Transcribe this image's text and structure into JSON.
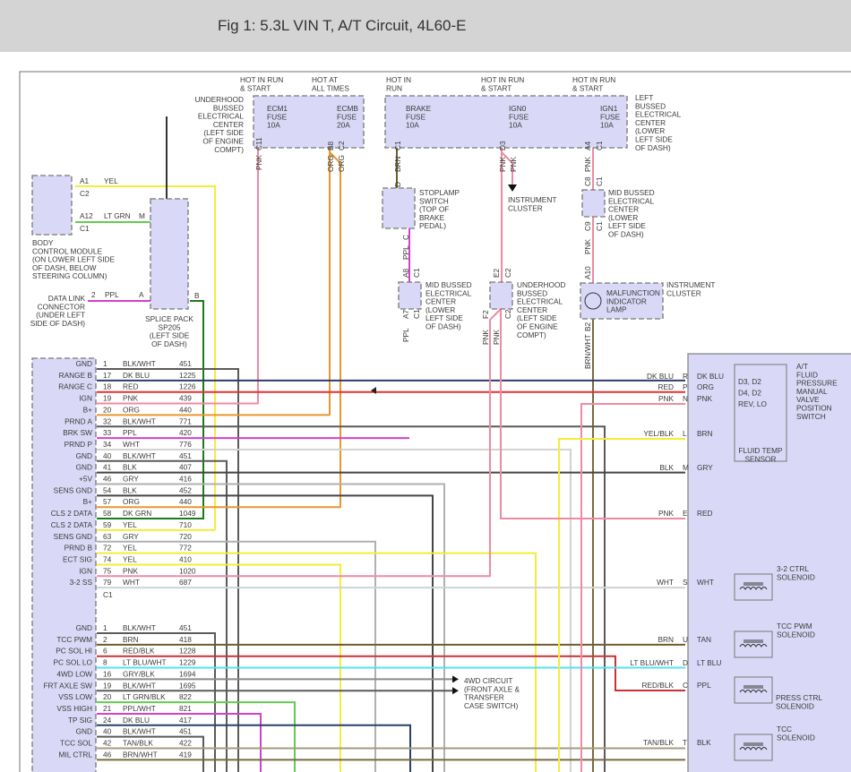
{
  "header": {
    "title": "Fig 1: 5.3L VIN T, A/T Circuit, 4L60-E"
  },
  "wire_colors": {
    "BLK/WHT": "#5a5a5a",
    "DK BLU": "#2b3f6b",
    "RED": "#e23030",
    "PNK": "#f08aa3",
    "ORG": "#e8962e",
    "PPL": "#d23fd2",
    "WHT": "#d2d2d2",
    "BLK": "#454545",
    "GRY": "#b0b0b0",
    "DK GRN": "#1b7a1b",
    "YEL": "#f4ec3a",
    "BRN": "#6e5c28",
    "LT BLU": "#55e0ee",
    "LT GRN": "#63cc50",
    "TAN": "#a39d7b",
    "BRN/WHT": "#7a6a40",
    "RED/BLK": "#c83232",
    "LT BLU/WHT": "#55e0ee",
    "GRY/BLK": "#8a8a8a",
    "LT GRN/BLK": "#63cc50",
    "PPL/WHT": "#d23fd2",
    "TAN/BLK": "#a39d7b",
    "YEL/BLK": "#f4ec3a",
    "box_fill": "#d9d9f7"
  },
  "fuse_blocks": {
    "underhood": {
      "desc": [
        "UNDERHOOD",
        "BUSSED",
        "ELECTRICAL",
        "CENTER",
        "(LEFT SIDE",
        "OF ENGINE",
        "COMPT)"
      ],
      "fuses": [
        {
          "hot": [
            "HOT IN RUN",
            "& START"
          ],
          "name": [
            "ECM1",
            "FUSE",
            "10A"
          ]
        },
        {
          "hot": [
            "HOT AT",
            "ALL TIMES"
          ],
          "name": [
            "ECMB",
            "FUSE",
            "20A"
          ]
        }
      ]
    },
    "left": {
      "desc": [
        "LEFT",
        "BUSSED",
        "ELECTRICAL",
        "CENTER",
        "(LOWER",
        "LEFT SIDE",
        "OF DASH)"
      ],
      "fuses": [
        {
          "hot": [
            "HOT IN",
            "RUN"
          ],
          "name": [
            "BRAKE",
            "FUSE",
            "10A"
          ]
        },
        {
          "hot": [
            "HOT IN RUN",
            "& START"
          ],
          "name": [
            "IGN0",
            "FUSE",
            "10A"
          ]
        },
        {
          "hot": [
            "HOT IN RUN",
            "& START"
          ],
          "name": [
            "IGN1",
            "FUSE",
            "10A"
          ]
        }
      ]
    }
  },
  "vertical_labels": [
    "PNK",
    "C11",
    "ORG",
    "B8",
    "ORG",
    "C2",
    "BRN",
    "C1",
    "PNK",
    "D3",
    "PNK",
    "PNK",
    "A4",
    "C1",
    "D",
    "C",
    "PPL",
    "A8",
    "C1",
    "A7",
    "C1",
    "PPL",
    "E2",
    "C2",
    "F2",
    "C2",
    "PNK",
    "PNK",
    "C8",
    "C1",
    "C9",
    "C1",
    "PNK",
    "A10",
    "B2",
    "BRN/WHT"
  ],
  "bcm": {
    "desc": [
      "BODY",
      "CONTROL MODULE",
      "(ON LOWER LEFT SIDE",
      "OF DASH, BELOW",
      "STEERING COLUMN)"
    ],
    "pins": [
      {
        "pin": "A1",
        "color": "YEL",
        "conn": "C2"
      },
      {
        "pin": "A12",
        "color": "LT GRN",
        "conn": "C1",
        "to": "M"
      }
    ]
  },
  "dlc": {
    "desc": [
      "DATA LINK",
      "CONNECTOR",
      "(UNDER LEFT",
      "SIDE OF DASH)"
    ],
    "pin": "2",
    "color": "PPL",
    "to": "A"
  },
  "splice": {
    "desc": [
      "SPLICE PACK",
      "SP205",
      "(LEFT SIDE",
      "OF DASH)"
    ],
    "out": "B"
  },
  "components": {
    "stoplamp": [
      "STOPLAMP",
      "SWITCH",
      "(TOP OF",
      "BRAKE",
      "PEDAL)"
    ],
    "cluster_arrow": [
      "INSTRUMENT",
      "CLUSTER"
    ],
    "mid_bussed_top": [
      "MID BUSSED",
      "ELECTRICAL",
      "CENTER",
      "(LOWER",
      "LEFT SIDE",
      "OF DASH)"
    ],
    "mid_bussed": [
      "MID BUSSED",
      "ELECTRICAL",
      "CENTER",
      "(LOWER",
      "LEFT SIDE",
      "OF DASH)"
    ],
    "underhood2": [
      "UNDERHOOD",
      "BUSSED",
      "ELECTRICAL",
      "CENTER",
      "(LEFT SIDE",
      "OF ENGINE",
      "COMPT)"
    ],
    "mil": [
      "MALFUNCTION",
      "INDICATOR",
      "LAMP"
    ],
    "mil_cluster": [
      "INSTRUMENT",
      "CLUSTER"
    ],
    "fwd": [
      "4WD CIRCUIT",
      "(FRONT AXLE &",
      "TRANSFER",
      "CASE SWITCH)"
    ]
  },
  "pcm": {
    "c2_rows": [
      {
        "label": "GND",
        "pin": "1",
        "color": "BLK/WHT",
        "circuit": "451"
      },
      {
        "label": "RANGE B",
        "pin": "17",
        "color": "DK BLU",
        "circuit": "1225"
      },
      {
        "label": "RANGE C",
        "pin": "18",
        "color": "RED",
        "circuit": "1226"
      },
      {
        "label": "IGN",
        "pin": "19",
        "color": "PNK",
        "circuit": "439"
      },
      {
        "label": "B+",
        "pin": "20",
        "color": "ORG",
        "circuit": "440"
      },
      {
        "label": "PRND A",
        "pin": "32",
        "color": "BLK/WHT",
        "circuit": "771"
      },
      {
        "label": "BRK SW",
        "pin": "33",
        "color": "PPL",
        "circuit": "420"
      },
      {
        "label": "PRND P",
        "pin": "34",
        "color": "WHT",
        "circuit": "776"
      },
      {
        "label": "GND",
        "pin": "40",
        "color": "BLK/WHT",
        "circuit": "451"
      },
      {
        "label": "GND",
        "pin": "41",
        "color": "BLK",
        "circuit": "407"
      },
      {
        "label": "+5V",
        "pin": "46",
        "color": "GRY",
        "circuit": "416"
      },
      {
        "label": "SENS GND",
        "pin": "54",
        "color": "BLK",
        "circuit": "452"
      },
      {
        "label": "B+",
        "pin": "57",
        "color": "ORG",
        "circuit": "440"
      },
      {
        "label": "CLS 2 DATA",
        "pin": "58",
        "color": "DK GRN",
        "circuit": "1049"
      },
      {
        "label": "CLS 2 DATA",
        "pin": "59",
        "color": "YEL",
        "circuit": "710"
      },
      {
        "label": "SENS GND",
        "pin": "63",
        "color": "GRY",
        "circuit": "720"
      },
      {
        "label": "PRND B",
        "pin": "72",
        "color": "YEL",
        "circuit": "772"
      },
      {
        "label": "ECT SIG",
        "pin": "74",
        "color": "YEL",
        "circuit": "410"
      },
      {
        "label": "IGN",
        "pin": "75",
        "color": "PNK",
        "circuit": "1020"
      },
      {
        "label": "3-2 SS",
        "pin": "79",
        "color": "WHT",
        "circuit": "687"
      }
    ],
    "c2_connector": "C1",
    "c1_rows": [
      {
        "label": "GND",
        "pin": "1",
        "color": "BLK/WHT",
        "circuit": "451"
      },
      {
        "label": "TCC PWM",
        "pin": "2",
        "color": "BRN",
        "circuit": "418"
      },
      {
        "label": "PC SOL HI",
        "pin": "6",
        "color": "RED/BLK",
        "circuit": "1228"
      },
      {
        "label": "PC SOL LO",
        "pin": "8",
        "color": "LT BLU/WHT",
        "circuit": "1229"
      },
      {
        "label": "4WD LOW",
        "pin": "16",
        "color": "GRY/BLK",
        "circuit": "1694"
      },
      {
        "label": "FRT AXLE SW",
        "pin": "19",
        "color": "BLK/WHT",
        "circuit": "1695"
      },
      {
        "label": "VSS LOW",
        "pin": "20",
        "color": "LT GRN/BLK",
        "circuit": "822"
      },
      {
        "label": "VSS HIGH",
        "pin": "21",
        "color": "PPL/WHT",
        "circuit": "821"
      },
      {
        "label": "TP SIG",
        "pin": "24",
        "color": "DK BLU",
        "circuit": "417"
      },
      {
        "label": "GND",
        "pin": "40",
        "color": "BLK/WHT",
        "circuit": "451"
      },
      {
        "label": "TCC SOL",
        "pin": "42",
        "color": "TAN/BLK",
        "circuit": "422"
      },
      {
        "label": "MIL CTRL",
        "pin": "46",
        "color": "BRN/WHT",
        "circuit": "419"
      }
    ]
  },
  "transmission": {
    "connections": [
      {
        "outer": "DK BLU",
        "pin": "R",
        "inner": "DK BLU"
      },
      {
        "outer": "RED",
        "pin": "P",
        "inner": "ORG"
      },
      {
        "outer": "PNK",
        "pin": "N",
        "inner": "PNK"
      },
      {
        "outer": "YEL/BLK",
        "pin": "L",
        "inner": "BRN"
      },
      {
        "outer": "BLK",
        "pin": "M",
        "inner": "GRY"
      },
      {
        "outer": "PNK",
        "pin": "E",
        "inner": "RED"
      },
      {
        "outer": "WHT",
        "pin": "S",
        "inner": "WHT"
      },
      {
        "outer": "BRN",
        "pin": "U",
        "inner": "TAN"
      },
      {
        "outer": "LT BLU/WHT",
        "pin": "D",
        "inner": "LT BLU"
      },
      {
        "outer": "RED/BLK",
        "pin": "C",
        "inner": "PPL"
      },
      {
        "outer": "TAN/BLK",
        "pin": "T",
        "inner": "BLK"
      }
    ],
    "switch_positions": [
      "D3, D2",
      "D4, D2",
      "REV, LO"
    ],
    "switch_name": [
      "A/T",
      "FLUID",
      "PRESSURE",
      "MANUAL",
      "VALVE",
      "POSITION",
      "SWITCH"
    ],
    "fluid_temp": [
      "FLUID TEMP",
      "SENSOR"
    ],
    "solenoids": [
      [
        "3-2 CTRL",
        "SOLENOID"
      ],
      [
        "TCC PWM",
        "SOLENOID"
      ],
      [
        "PRESS CTRL",
        "SOLENOID"
      ],
      [
        "TCC",
        "SOLENOID"
      ]
    ]
  }
}
